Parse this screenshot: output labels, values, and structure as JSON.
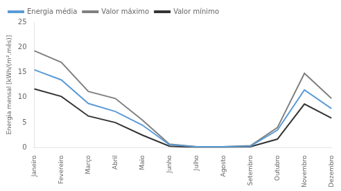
{
  "chart_data": {
    "type": "line",
    "categories": [
      "Janeiro",
      "Fevereiro",
      "Março",
      "Abril",
      "Maio",
      "Junho",
      "Julho",
      "Agosto",
      "Setembro",
      "Outubro",
      "Novembro",
      "Dezembro"
    ],
    "series": [
      {
        "name": "Energia média",
        "color": "#5B9BD5",
        "values": [
          15.5,
          13.5,
          8.8,
          7.2,
          4.5,
          0.6,
          0.2,
          0.2,
          0.3,
          3.5,
          11.5,
          7.8
        ]
      },
      {
        "name": "Valor máximo",
        "color": "#808080",
        "values": [
          19.3,
          17.0,
          11.2,
          9.8,
          5.5,
          0.7,
          0.2,
          0.2,
          0.4,
          4.0,
          14.8,
          9.8
        ]
      },
      {
        "name": "Valor mínimo",
        "color": "#333333",
        "values": [
          11.7,
          10.2,
          6.3,
          5.0,
          2.5,
          0.3,
          0.1,
          0.1,
          0.2,
          1.7,
          8.7,
          5.9
        ]
      }
    ],
    "ylabel": "Energia mensal [kWh/(m².mês)]",
    "ylim": [
      0,
      25
    ],
    "yticks": [
      0,
      5,
      10,
      15,
      20,
      25
    ],
    "grid": false,
    "legend": "upper left"
  }
}
